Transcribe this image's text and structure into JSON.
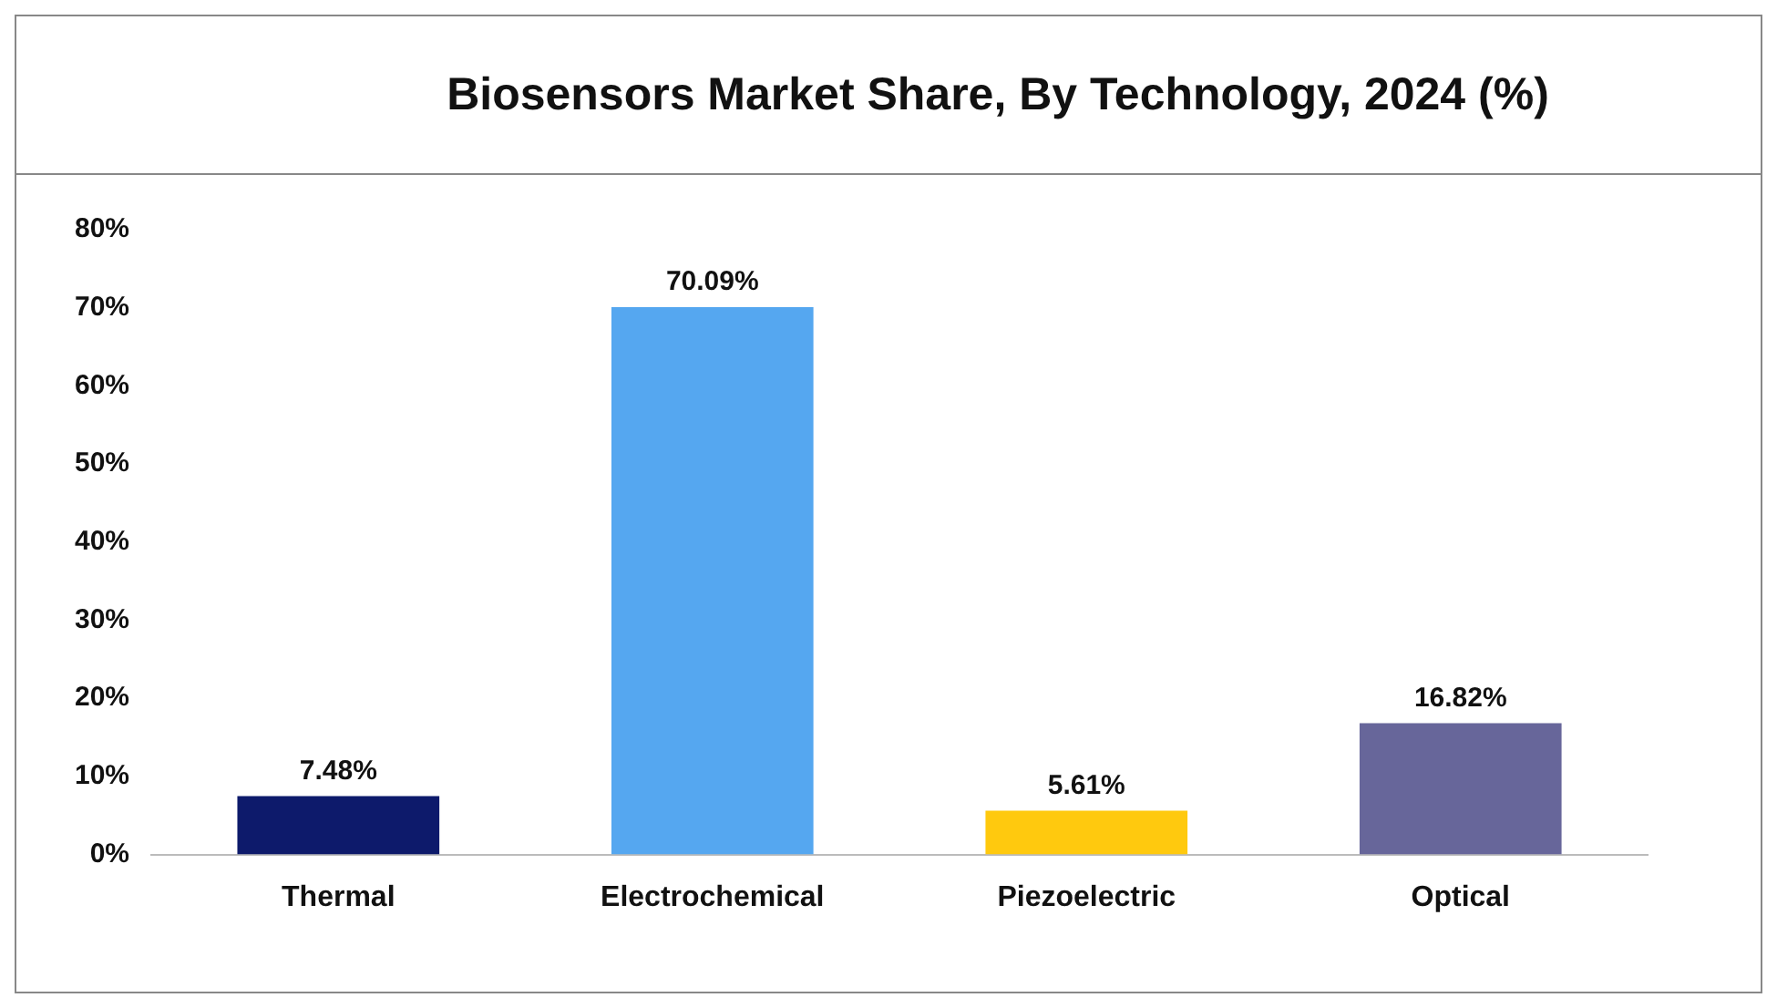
{
  "chart_data": {
    "type": "bar",
    "title": "Biosensors Market Share, By Technology, 2024 (%)",
    "categories": [
      "Thermal",
      "Electrochemical",
      "Piezoelectric",
      "Optical"
    ],
    "values": [
      7.48,
      70.09,
      5.61,
      16.82
    ],
    "colors": [
      "#0d1a6b",
      "#55a7f0",
      "#ffc90e",
      "#67669a"
    ],
    "value_labels": [
      "7.48%",
      "70.09%",
      "5.61%",
      "16.82%"
    ],
    "ylim": [
      0,
      80
    ],
    "yticks": [
      {
        "value": 0,
        "label": "0%"
      },
      {
        "value": 10,
        "label": "10%"
      },
      {
        "value": 20,
        "label": "20%"
      },
      {
        "value": 30,
        "label": "30%"
      },
      {
        "value": 40,
        "label": "40%"
      },
      {
        "value": 50,
        "label": "50%"
      },
      {
        "value": 60,
        "label": "60%"
      },
      {
        "value": 70,
        "label": "70%"
      },
      {
        "value": 80,
        "label": "80%"
      }
    ],
    "grid": false,
    "legend": false
  }
}
